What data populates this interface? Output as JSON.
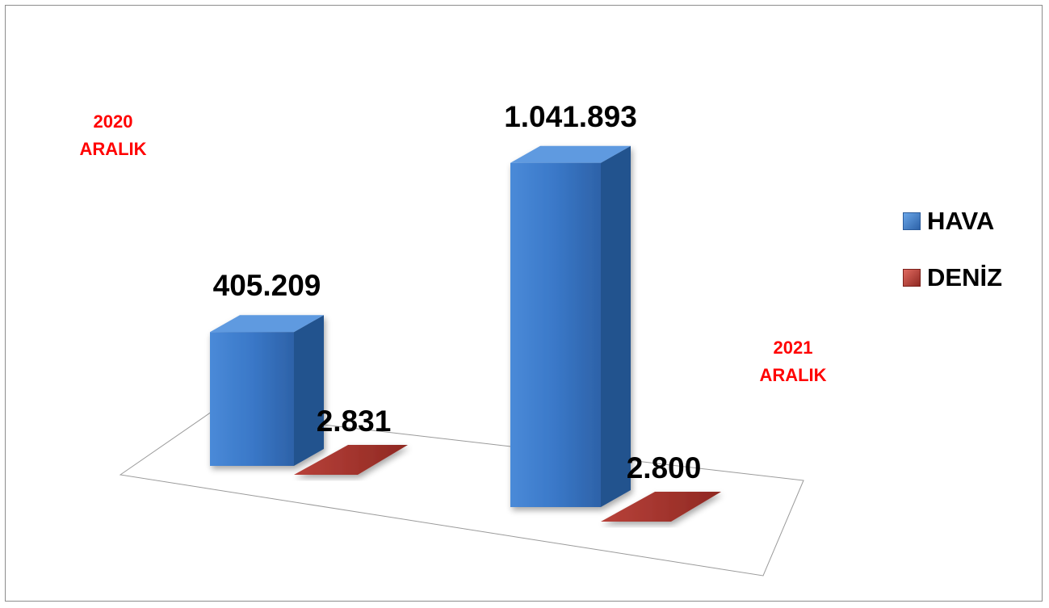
{
  "chart_data": {
    "type": "bar",
    "categories": [
      "2020\nARALIK",
      "2021\nARALIK"
    ],
    "category_lines": [
      [
        "2020",
        "ARALIK"
      ],
      [
        "2021",
        "ARALIK"
      ]
    ],
    "series": [
      {
        "name": "HAVA",
        "values": [
          405209,
          1041893
        ],
        "labels": [
          "405.209",
          "1.041.893"
        ],
        "color": "#3a78c8"
      },
      {
        "name": "DENİZ",
        "values": [
          2831,
          2800
        ],
        "labels": [
          "2.831",
          "2.800"
        ],
        "color": "#a3312c"
      }
    ],
    "title": "",
    "xlabel": "",
    "ylabel": "",
    "ylim": [
      0,
      1100000
    ],
    "grid": false,
    "legend_position": "right",
    "category_label_color": "#ff0000"
  }
}
